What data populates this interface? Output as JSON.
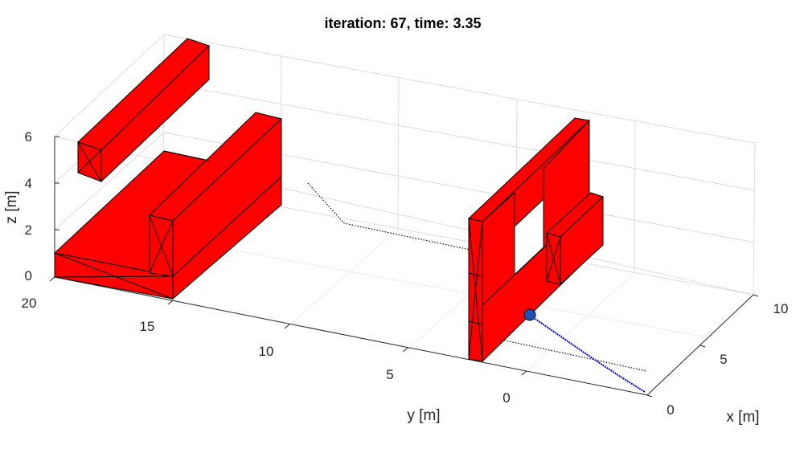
{
  "chart_data": {
    "type": "3d-plot",
    "title": "iteration: 67, time: 3.35",
    "xlabel": "x [m]",
    "ylabel": "y [m]",
    "zlabel": "z [m]",
    "x_ticks": [
      "0",
      "5",
      "10"
    ],
    "y_ticks": [
      "0",
      "5",
      "10",
      "15",
      "20"
    ],
    "z_ticks": [
      "0",
      "2",
      "4",
      "6"
    ],
    "xlim": [
      0,
      10
    ],
    "ylim": [
      0,
      20
    ],
    "zlim": [
      0,
      6
    ],
    "grid": true,
    "colors": {
      "obstacle": "#ff0000",
      "trajectory": "#0000cc",
      "reference": "#000000",
      "robot": "#1f4fb4"
    }
  }
}
